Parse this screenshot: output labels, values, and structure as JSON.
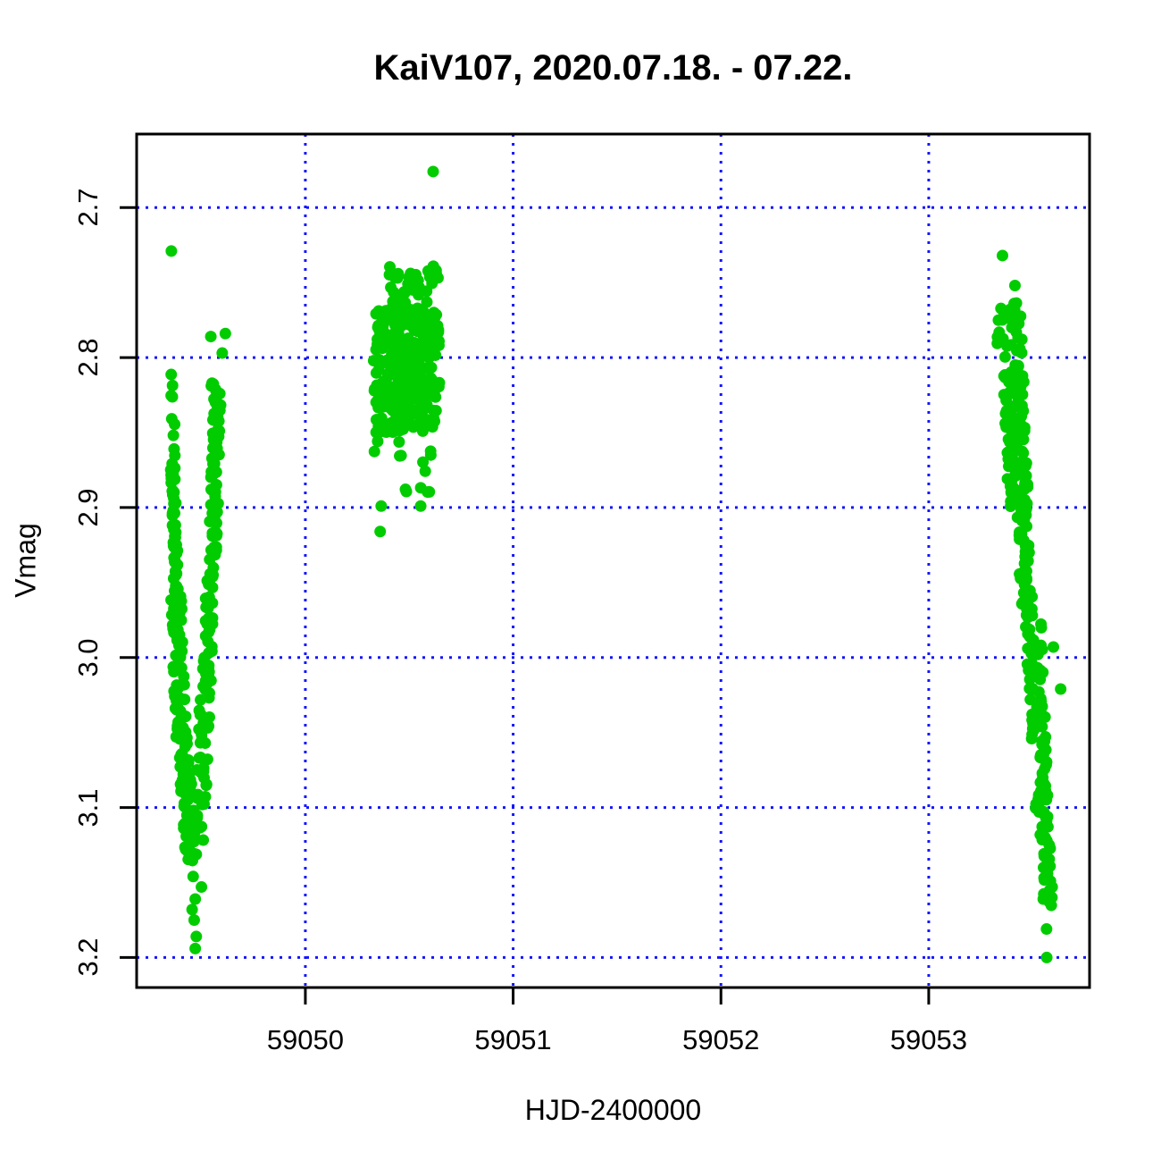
{
  "chart_data": {
    "type": "scatter",
    "title": "KaiV107, 2020.07.18. - 07.22.",
    "xlabel": "HJD-2400000",
    "ylabel": "Vmag",
    "xlim": [
      59049.188,
      59053.774
    ],
    "ylim": [
      3.22,
      2.651
    ],
    "y_axis_inverted": true,
    "x_ticks": [
      59050,
      59051,
      59052,
      59053
    ],
    "x_tick_labels": [
      "59050",
      "59051",
      "59052",
      "59053"
    ],
    "y_ticks": [
      2.7,
      2.8,
      2.9,
      3.0,
      3.1,
      3.2
    ],
    "y_tick_labels": [
      "2.7",
      "2.8",
      "2.9",
      "3.0",
      "3.1",
      "3.2"
    ],
    "grid": {
      "show": true,
      "color": "#1414ff",
      "style": "dotted"
    },
    "point_color": "#00cc00",
    "point_radius_px": 6.5,
    "frame_color": "#000000",
    "seed": 7,
    "clusters": [
      {
        "name": "night-2020-07-18-eclipse-descent",
        "points": [
          [
            59049.355,
            2.729
          ],
          [
            59049.545,
            2.786
          ],
          [
            59049.615,
            2.784
          ],
          [
            59049.6,
            2.797
          ],
          [
            59049.46,
            3.146
          ],
          [
            59049.5,
            3.153
          ],
          [
            59049.47,
            3.161
          ],
          [
            59049.455,
            3.168
          ],
          [
            59049.465,
            3.175
          ],
          [
            59049.475,
            3.186
          ],
          [
            59049.47,
            3.194
          ]
        ],
        "segments": [
          {
            "n": 9,
            "x": [
              59049.358,
              59049.368
            ],
            "y": [
              2.808,
              2.866
            ],
            "xj": 0.007,
            "yj": 0.004
          },
          {
            "n": 46,
            "x": [
              59049.362,
              59049.378
            ],
            "y": [
              2.869,
              2.956
            ],
            "xj": 0.013,
            "yj": 0.004
          },
          {
            "n": 72,
            "x": [
              59049.376,
              59049.408
            ],
            "y": [
              2.956,
              3.068
            ],
            "xj": 0.026,
            "yj": 0.005
          },
          {
            "n": 52,
            "x": [
              59049.418,
              59049.45
            ],
            "y": [
              3.068,
              3.134
            ],
            "xj": 0.028,
            "yj": 0.005
          },
          {
            "n": 5,
            "x": [
              59049.548,
              59049.568
            ],
            "y": [
              2.817,
              2.822
            ],
            "xj": 0.01,
            "yj": 0.002
          },
          {
            "n": 52,
            "x": [
              59049.574,
              59049.556
            ],
            "y": [
              2.824,
              2.924
            ],
            "xj": 0.02,
            "yj": 0.004
          },
          {
            "n": 46,
            "x": [
              59049.552,
              59049.524
            ],
            "y": [
              2.924,
              3.02
            ],
            "xj": 0.022,
            "yj": 0.005
          },
          {
            "n": 46,
            "x": [
              59049.518,
              59049.488
            ],
            "y": [
              3.02,
              3.128
            ],
            "xj": 0.026,
            "yj": 0.005
          }
        ]
      },
      {
        "name": "night-2020-07-19-out-of-eclipse",
        "points": [
          [
            59050.615,
            2.676
          ],
          [
            59050.36,
            2.916
          ],
          [
            59050.365,
            2.899
          ],
          [
            59050.555,
            2.899
          ]
        ],
        "segments": [
          {
            "mode": "uniform",
            "n": 260,
            "x": [
              59050.338,
              59050.645
            ],
            "y": [
              2.768,
              2.85
            ]
          },
          {
            "mode": "uniform",
            "n": 40,
            "x": [
              59050.4,
              59050.645
            ],
            "y": [
              2.733,
              2.768
            ]
          },
          {
            "mode": "uniform",
            "n": 30,
            "x": [
              59050.325,
              59050.472
            ],
            "y": [
              2.798,
              2.868
            ]
          },
          {
            "mode": "uniform",
            "n": 10,
            "x": [
              59050.35,
              59050.61
            ],
            "y": [
              2.855,
              2.893
            ]
          }
        ]
      },
      {
        "name": "night-2020-07-22-eclipse-descent",
        "points": [
          [
            59053.355,
            2.732
          ],
          [
            59053.415,
            2.752
          ],
          [
            59053.6,
            2.993
          ],
          [
            59053.635,
            3.021
          ],
          [
            59053.567,
            3.181
          ],
          [
            59053.568,
            3.2
          ]
        ],
        "segments": [
          {
            "mode": "uniform",
            "n": 30,
            "x": [
              59053.33,
              59053.452
            ],
            "y": [
              2.762,
              2.806
            ]
          },
          {
            "n": 110,
            "x": [
              59053.405,
              59053.435
            ],
            "y": [
              2.806,
              2.898
            ],
            "xj": 0.05,
            "yj": 0.004
          },
          {
            "n": 40,
            "x": [
              59053.448,
              59053.472
            ],
            "y": [
              2.898,
              2.966
            ],
            "xj": 0.028,
            "yj": 0.004
          },
          {
            "n": 85,
            "x": [
              59053.498,
              59053.548
            ],
            "y": [
              2.966,
              3.098
            ],
            "xj": 0.04,
            "yj": 0.005
          },
          {
            "n": 35,
            "x": [
              59053.553,
              59053.574
            ],
            "y": [
              3.098,
              3.166
            ],
            "xj": 0.024,
            "yj": 0.004
          }
        ]
      }
    ]
  }
}
